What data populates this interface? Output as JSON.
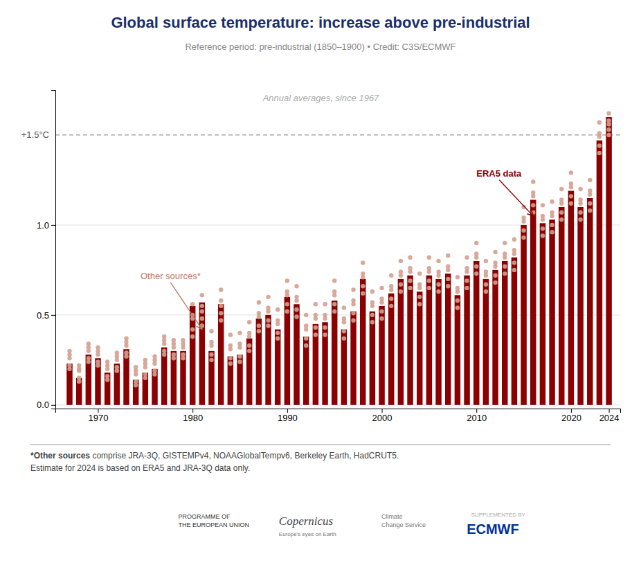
{
  "chart_data": {
    "type": "bar",
    "title": "Global surface temperature: increase above pre-industrial",
    "subtitle": "Reference period: pre-industrial (1850–1900) • Credit: C3S/ECMWF",
    "annotation": "Annual averages, since 1967",
    "footnotes": [
      {
        "bold": "*Other sources",
        "text": " comprise JRA-3Q, GISTEMPv4, NOAAGlobalTempv6, Berkeley Earth, HadCRUT5."
      },
      {
        "text": "Estimate for 2024 is based on ERA5 and JRA-3Q data only."
      }
    ],
    "logo_texts": [
      "PROGRAMME OF\nTHE EUROPEAN UNION",
      "Copernicus",
      "Europe's eyes on Earth",
      "Climate\nChange Service",
      "SUPPLEMENTED BY",
      "ECMWF"
    ],
    "x": [
      1967,
      1968,
      1969,
      1970,
      1971,
      1972,
      1973,
      1974,
      1975,
      1976,
      1977,
      1978,
      1979,
      1980,
      1981,
      1982,
      1983,
      1984,
      1985,
      1986,
      1987,
      1988,
      1989,
      1990,
      1991,
      1992,
      1993,
      1994,
      1995,
      1996,
      1997,
      1998,
      1999,
      2000,
      2001,
      2002,
      2003,
      2004,
      2005,
      2006,
      2007,
      2008,
      2009,
      2010,
      2011,
      2012,
      2013,
      2014,
      2015,
      2016,
      2017,
      2018,
      2019,
      2020,
      2021,
      2022,
      2023,
      2024
    ],
    "series": [
      {
        "name": "ERA5 data",
        "type": "bar",
        "color": "#8B0000",
        "label": {
          "x": 2010,
          "y": 1.27,
          "arrow_x": 2016,
          "arrow_y": 1.05,
          "color": "#8B0000"
        },
        "values": [
          0.23,
          0.15,
          0.28,
          0.26,
          0.18,
          0.23,
          0.31,
          0.14,
          0.18,
          0.2,
          0.32,
          0.3,
          0.3,
          0.55,
          0.57,
          0.3,
          0.56,
          0.27,
          0.28,
          0.37,
          0.48,
          0.5,
          0.42,
          0.6,
          0.56,
          0.38,
          0.45,
          0.46,
          0.58,
          0.42,
          0.52,
          0.7,
          0.52,
          0.55,
          0.62,
          0.7,
          0.72,
          0.63,
          0.72,
          0.7,
          0.73,
          0.61,
          0.72,
          0.8,
          0.7,
          0.75,
          0.8,
          0.82,
          1.0,
          1.14,
          1.01,
          1.03,
          1.1,
          1.19,
          1.1,
          1.15,
          1.47,
          1.6
        ]
      },
      {
        "name": "Other sources*",
        "type": "scatter",
        "marker": "circle",
        "color": "#D4A090",
        "label": {
          "x": 1974.5,
          "y": 0.7,
          "arrow_x": 1981,
          "arrow_y": 0.42,
          "color": "#C07860"
        },
        "values": [
          [
            0.2,
            0.22,
            0.26,
            0.3,
            0.28
          ],
          [
            0.13,
            0.15,
            0.19,
            0.22,
            0.2
          ],
          [
            0.24,
            0.26,
            0.3,
            0.34,
            0.32
          ],
          [
            0.22,
            0.24,
            0.28,
            0.32,
            0.3
          ],
          [
            0.14,
            0.16,
            0.2,
            0.24,
            0.22
          ],
          [
            0.19,
            0.21,
            0.25,
            0.29,
            0.27
          ],
          [
            0.27,
            0.29,
            0.33,
            0.37,
            0.35
          ],
          [
            0.11,
            0.13,
            0.17,
            0.21,
            0.19
          ],
          [
            0.15,
            0.17,
            0.21,
            0.25,
            0.23
          ],
          [
            0.17,
            0.19,
            0.23,
            0.27,
            0.25
          ],
          [
            0.28,
            0.3,
            0.34,
            0.38,
            0.36
          ],
          [
            0.26,
            0.28,
            0.32,
            0.36,
            0.34
          ],
          [
            0.26,
            0.28,
            0.32,
            0.36,
            0.34
          ],
          [
            0.38,
            0.42,
            0.5,
            0.56,
            0.48
          ],
          [
            0.44,
            0.48,
            0.55,
            0.61,
            0.52
          ],
          [
            0.25,
            0.28,
            0.35,
            0.41,
            0.33
          ],
          [
            0.47,
            0.51,
            0.58,
            0.64,
            0.55
          ],
          [
            0.23,
            0.26,
            0.33,
            0.39,
            0.31
          ],
          [
            0.24,
            0.27,
            0.34,
            0.4,
            0.32
          ],
          [
            0.3,
            0.33,
            0.4,
            0.46,
            0.38
          ],
          [
            0.41,
            0.44,
            0.51,
            0.57,
            0.49
          ],
          [
            0.44,
            0.47,
            0.54,
            0.6,
            0.52
          ],
          [
            0.37,
            0.4,
            0.47,
            0.53,
            0.45
          ],
          [
            0.52,
            0.56,
            0.63,
            0.69,
            0.61
          ],
          [
            0.49,
            0.53,
            0.6,
            0.66,
            0.58
          ],
          [
            0.33,
            0.37,
            0.44,
            0.5,
            0.42
          ],
          [
            0.39,
            0.43,
            0.5,
            0.56,
            0.48
          ],
          [
            0.39,
            0.43,
            0.5,
            0.56,
            0.48
          ],
          [
            0.52,
            0.56,
            0.63,
            0.69,
            0.61
          ],
          [
            0.37,
            0.41,
            0.48,
            0.54,
            0.46
          ],
          [
            0.47,
            0.51,
            0.58,
            0.64,
            0.56
          ],
          [
            0.62,
            0.66,
            0.73,
            0.79,
            0.71
          ],
          [
            0.46,
            0.5,
            0.57,
            0.63,
            0.55
          ],
          [
            0.48,
            0.52,
            0.59,
            0.65,
            0.57
          ],
          [
            0.55,
            0.59,
            0.66,
            0.72,
            0.64
          ],
          [
            0.63,
            0.67,
            0.74,
            0.8,
            0.72
          ],
          [
            0.65,
            0.69,
            0.76,
            0.82,
            0.74
          ],
          [
            0.56,
            0.6,
            0.67,
            0.73,
            0.65
          ],
          [
            0.65,
            0.69,
            0.76,
            0.82,
            0.74
          ],
          [
            0.63,
            0.67,
            0.74,
            0.8,
            0.72
          ],
          [
            0.66,
            0.7,
            0.77,
            0.83,
            0.75
          ],
          [
            0.54,
            0.58,
            0.65,
            0.71,
            0.63
          ],
          [
            0.65,
            0.69,
            0.76,
            0.82,
            0.74
          ],
          [
            0.73,
            0.77,
            0.84,
            0.9,
            0.82
          ],
          [
            0.63,
            0.67,
            0.74,
            0.8,
            0.72
          ],
          [
            0.68,
            0.72,
            0.79,
            0.85,
            0.77
          ],
          [
            0.73,
            0.77,
            0.84,
            0.9,
            0.82
          ],
          [
            0.75,
            0.79,
            0.86,
            0.92,
            0.84
          ],
          [
            0.93,
            0.97,
            1.04,
            1.1,
            1.02
          ],
          [
            1.07,
            1.11,
            1.18,
            1.24,
            1.16
          ],
          [
            0.94,
            0.98,
            1.05,
            1.11,
            1.03
          ],
          [
            0.96,
            1.0,
            1.07,
            1.13,
            1.05
          ],
          [
            1.03,
            1.07,
            1.14,
            1.2,
            1.12
          ],
          [
            1.12,
            1.16,
            1.23,
            1.29,
            1.21
          ],
          [
            1.03,
            1.07,
            1.14,
            1.2,
            1.12
          ],
          [
            1.08,
            1.12,
            1.19,
            1.25,
            1.17
          ],
          [
            1.4,
            1.44,
            1.51,
            1.57,
            1.49
          ],
          [
            1.5,
            1.53,
            1.58,
            1.62,
            1.56
          ]
        ]
      }
    ],
    "threshold": {
      "value": 1.5,
      "label": "+1.5°C",
      "color": "#999999",
      "line_style": "dashed"
    },
    "xlim": [
      1965.5,
      2025.2
    ],
    "ylim": [
      -0.02,
      1.75
    ],
    "xticks": [
      1970,
      1980,
      1990,
      2000,
      2010,
      2020,
      2024
    ],
    "yticks": [
      {
        "value": 0.0,
        "label": "0.0"
      },
      {
        "value": 0.5,
        "label": "0.5"
      },
      {
        "value": 1.0,
        "label": "1.0"
      }
    ],
    "grid": true
  }
}
